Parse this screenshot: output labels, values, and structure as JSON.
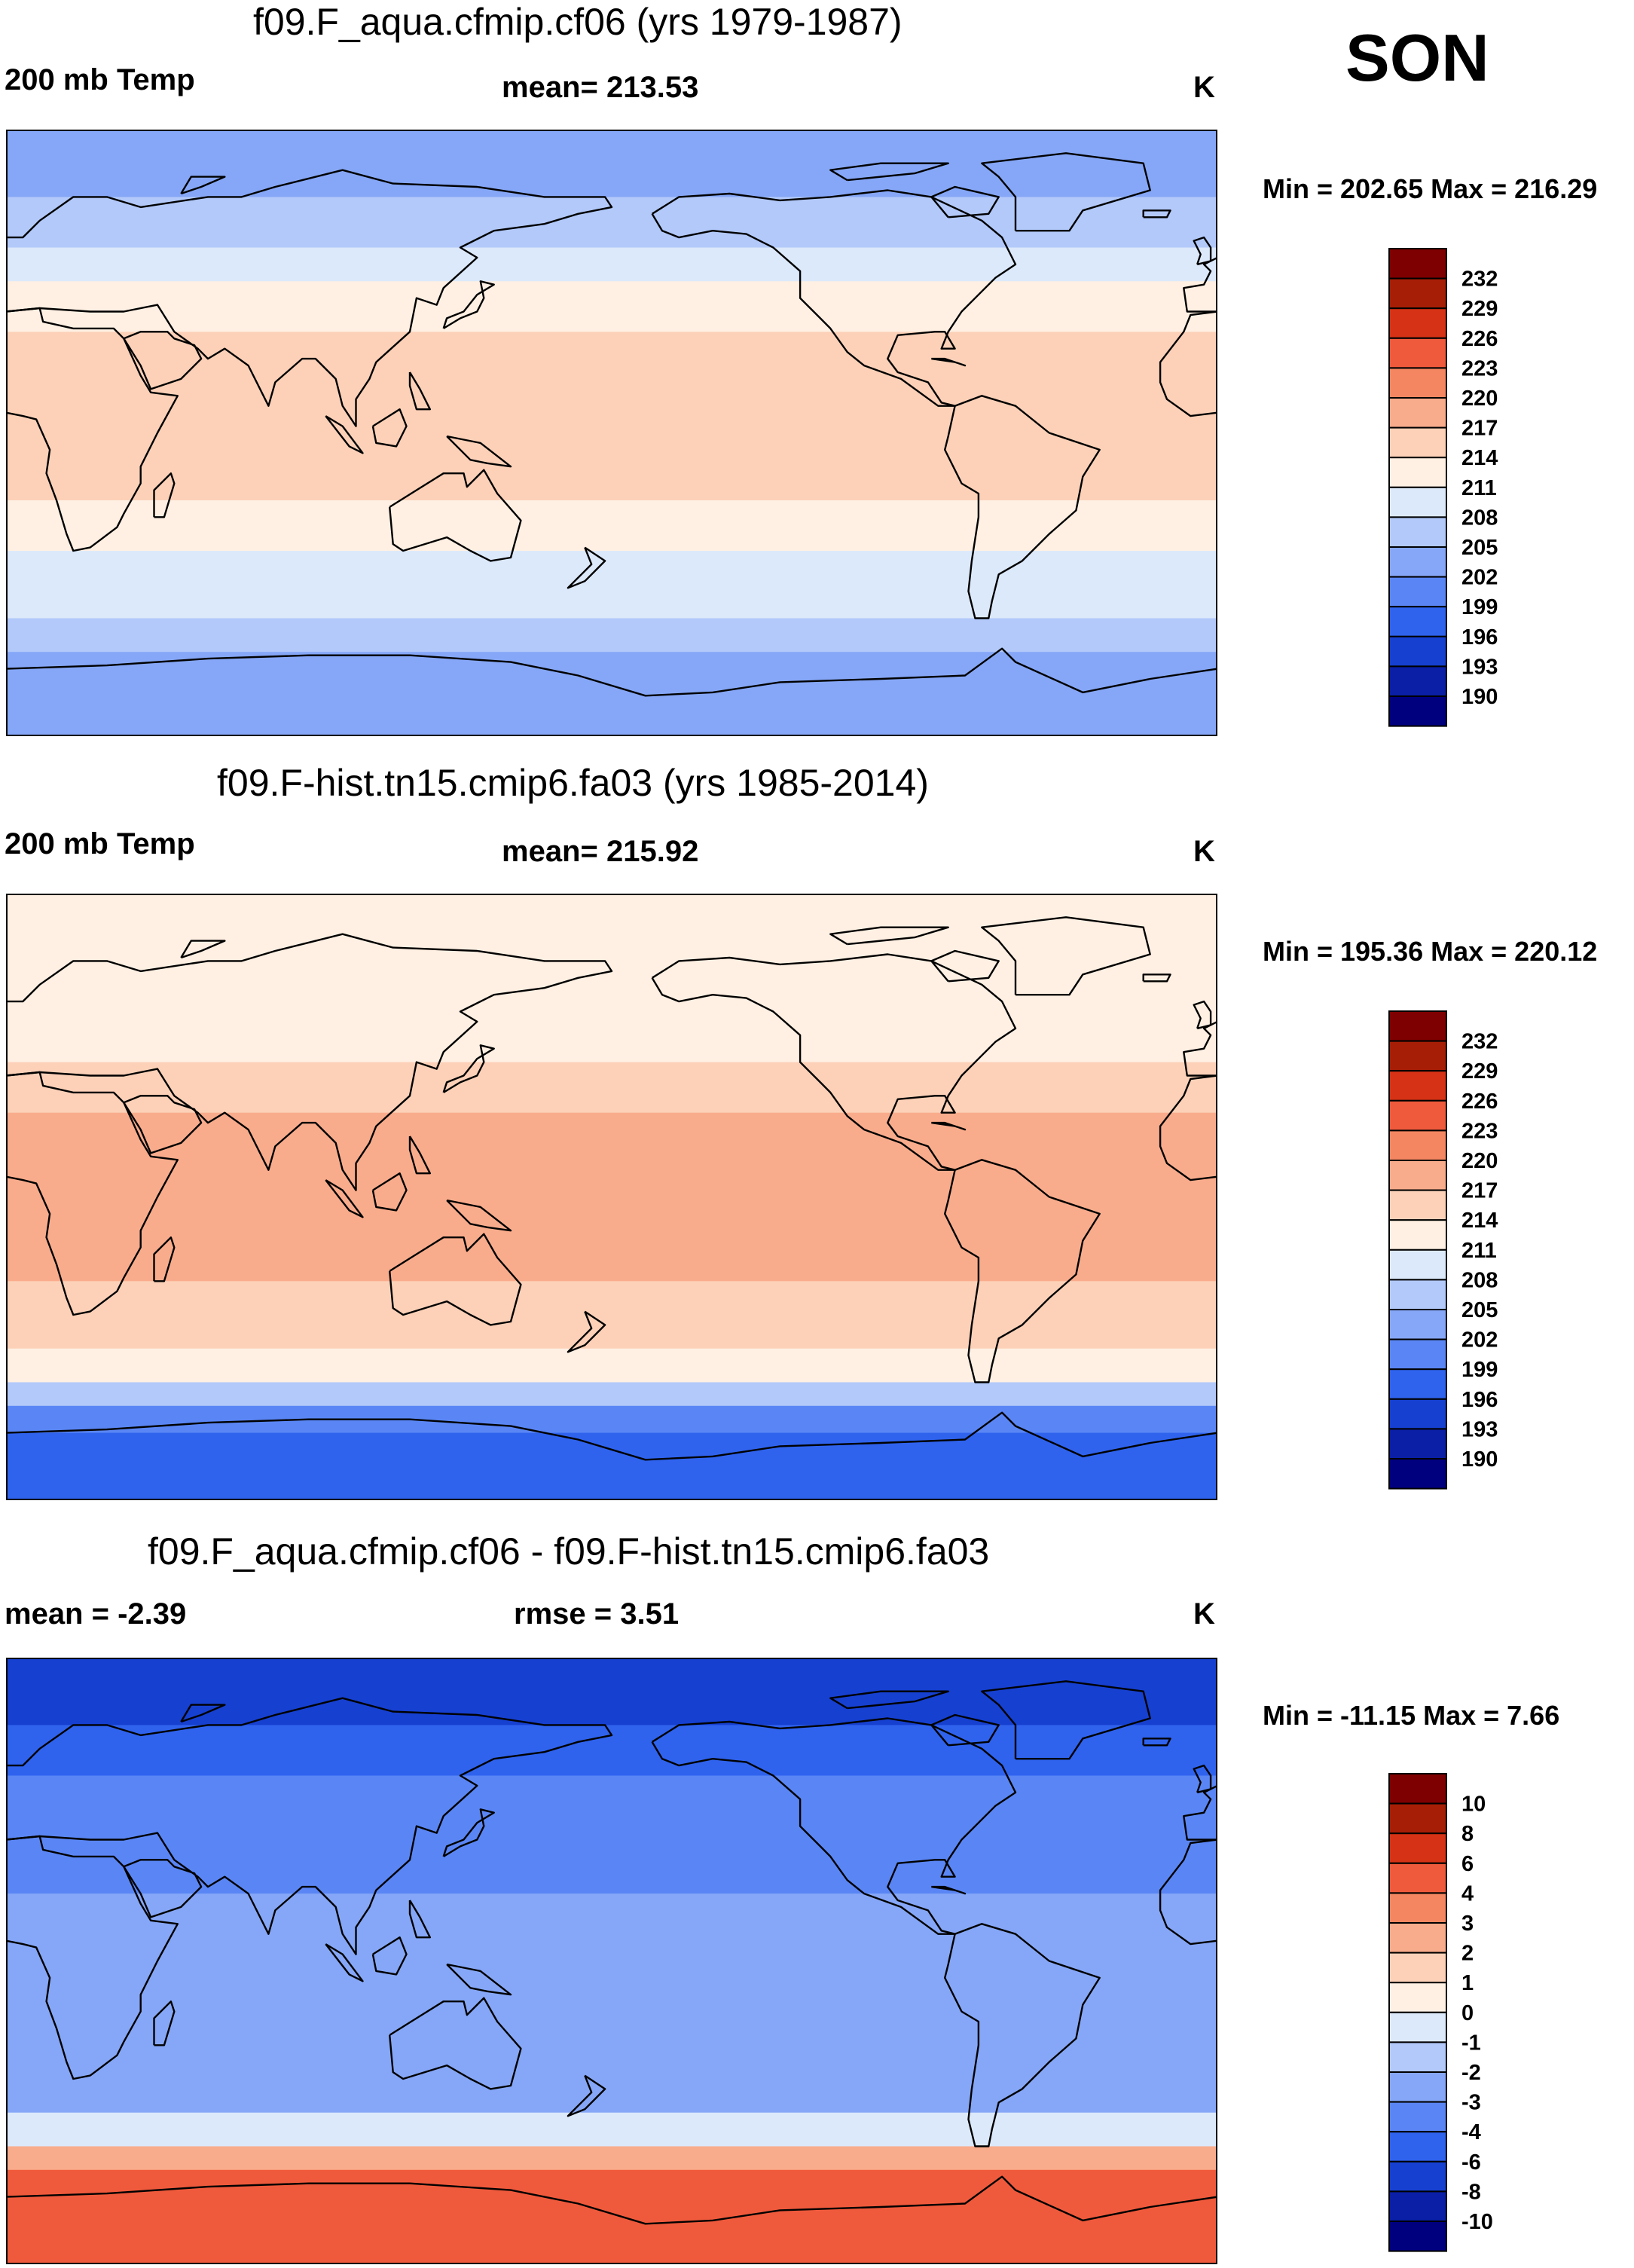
{
  "season": "SON",
  "units": "K",
  "colors": {
    "temp_levels": [
      "#00007f",
      "#0a1fa6",
      "#1640d0",
      "#2f63ee",
      "#5a86f5",
      "#86a7f7",
      "#b2c9fa",
      "#dce9fb",
      "#fff0e3",
      "#fcd1b8",
      "#f9ac8c",
      "#f48762",
      "#ef5a3c",
      "#d63215",
      "#a71e06",
      "#7f0000"
    ],
    "diff_levels": [
      "#00007f",
      "#0a1fa6",
      "#1640d0",
      "#2f63ee",
      "#5a86f5",
      "#86a7f7",
      "#b2c9fa",
      "#dce9fb",
      "#fff0e3",
      "#fcd1b8",
      "#f9ac8c",
      "#f48762",
      "#ef5a3c",
      "#d63215",
      "#a71e06",
      "#7f0000"
    ]
  },
  "chart_data": [
    {
      "type": "heatmap",
      "title": "f09.F_aqua.cfmip.cf06 (yrs 1979-1987)",
      "variable": "200 mb Temp",
      "mean_label": "mean= 213.53",
      "units": "K",
      "minmax_label": "Min = 202.65 Max = 216.29",
      "min": 202.65,
      "max": 216.29,
      "mean": 213.53,
      "colorbar_ticks": [
        "190",
        "193",
        "196",
        "199",
        "202",
        "205",
        "208",
        "211",
        "214",
        "217",
        "220",
        "223",
        "226",
        "229",
        "232"
      ],
      "lat_band_values": [
        {
          "lat": 90,
          "value": 203
        },
        {
          "lat": 70,
          "value": 206
        },
        {
          "lat": 55,
          "value": 209
        },
        {
          "lat": 45,
          "value": 212
        },
        {
          "lat": 30,
          "value": 215
        },
        {
          "lat": -20,
          "value": 215
        },
        {
          "lat": -35,
          "value": 212
        },
        {
          "lat": -55,
          "value": 209
        },
        {
          "lat": -65,
          "value": 206
        },
        {
          "lat": -90,
          "value": 204
        }
      ]
    },
    {
      "type": "heatmap",
      "title": "f09.F-hist.tn15.cmip6.fa03 (yrs 1985-2014)",
      "variable": "200 mb Temp",
      "mean_label": "mean= 215.92",
      "units": "K",
      "minmax_label": "Min = 195.36 Max = 220.12",
      "min": 195.36,
      "max": 220.12,
      "mean": 215.92,
      "colorbar_ticks": [
        "190",
        "193",
        "196",
        "199",
        "202",
        "205",
        "208",
        "211",
        "214",
        "217",
        "220",
        "223",
        "226",
        "229",
        "232"
      ],
      "lat_band_values": [
        {
          "lat": 90,
          "value": 212
        },
        {
          "lat": 60,
          "value": 213
        },
        {
          "lat": 40,
          "value": 215
        },
        {
          "lat": 25,
          "value": 218
        },
        {
          "lat": 0,
          "value": 218
        },
        {
          "lat": -25,
          "value": 217
        },
        {
          "lat": -45,
          "value": 214
        },
        {
          "lat": -55,
          "value": 210
        },
        {
          "lat": -62,
          "value": 203
        },
        {
          "lat": -70,
          "value": 198
        },
        {
          "lat": -90,
          "value": 196
        }
      ]
    },
    {
      "type": "heatmap",
      "title": "f09.F_aqua.cfmip.cf06 - f09.F-hist.tn15.cmip6.fa03",
      "mean_label": "mean =  -2.39",
      "rmse_label": "rmse =   3.51",
      "units": "K",
      "minmax_label": "Min = -11.15 Max =   7.66",
      "min": -11.15,
      "max": 7.66,
      "mean": -2.39,
      "rmse": 3.51,
      "colorbar_ticks": [
        "-10",
        "-8",
        "-6",
        "-4",
        "-3",
        "-2",
        "-1",
        "0",
        "1",
        "2",
        "3",
        "4",
        "6",
        "8",
        "10"
      ],
      "lat_band_values": [
        {
          "lat": 90,
          "value": -9
        },
        {
          "lat": 70,
          "value": -6
        },
        {
          "lat": 55,
          "value": -3
        },
        {
          "lat": 40,
          "value": -4
        },
        {
          "lat": 20,
          "value": -3
        },
        {
          "lat": 0,
          "value": -2
        },
        {
          "lat": -25,
          "value": -3
        },
        {
          "lat": -45,
          "value": -2
        },
        {
          "lat": -55,
          "value": 1
        },
        {
          "lat": -62,
          "value": 4
        },
        {
          "lat": -90,
          "value": 7
        }
      ]
    }
  ]
}
